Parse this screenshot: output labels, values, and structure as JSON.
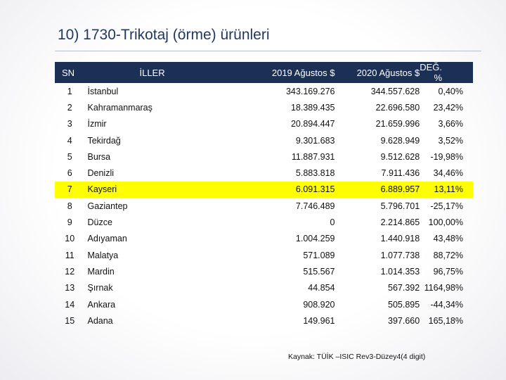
{
  "title": "10) 1730-Trikotaj (örme) ürünleri",
  "table": {
    "headers": [
      "SN",
      "İLLER",
      "2019 Ağustos $",
      "2020 Ağustos $",
      "DEĞ. %"
    ],
    "rows": [
      {
        "sn": "1",
        "il": "İstanbul",
        "v2019": "343.169.276",
        "v2020": "344.557.628",
        "deg": "0,40%",
        "highlight": false
      },
      {
        "sn": "2",
        "il": "Kahramanmaraş",
        "v2019": "18.389.435",
        "v2020": "22.696.580",
        "deg": "23,42%",
        "highlight": false
      },
      {
        "sn": "3",
        "il": "İzmir",
        "v2019": "20.894.447",
        "v2020": "21.659.996",
        "deg": "3,66%",
        "highlight": false
      },
      {
        "sn": "4",
        "il": "Tekirdağ",
        "v2019": "9.301.683",
        "v2020": "9.628.949",
        "deg": "3,52%",
        "highlight": false
      },
      {
        "sn": "5",
        "il": "Bursa",
        "v2019": "11.887.931",
        "v2020": "9.512.628",
        "deg": "-19,98%",
        "highlight": false
      },
      {
        "sn": "6",
        "il": "Denizli",
        "v2019": "5.883.818",
        "v2020": "7.911.436",
        "deg": "34,46%",
        "highlight": false
      },
      {
        "sn": "7",
        "il": "Kayseri",
        "v2019": "6.091.315",
        "v2020": "6.889.957",
        "deg": "13,11%",
        "highlight": true
      },
      {
        "sn": "8",
        "il": "Gaziantep",
        "v2019": "7.746.489",
        "v2020": "5.796.701",
        "deg": "-25,17%",
        "highlight": false
      },
      {
        "sn": "9",
        "il": "Düzce",
        "v2019": "0",
        "v2020": "2.214.865",
        "deg": "100,00%",
        "highlight": false
      },
      {
        "sn": "10",
        "il": "Adıyaman",
        "v2019": "1.004.259",
        "v2020": "1.440.918",
        "deg": "43,48%",
        "highlight": false
      },
      {
        "sn": "11",
        "il": "Malatya",
        "v2019": "571.089",
        "v2020": "1.077.738",
        "deg": "88,72%",
        "highlight": false
      },
      {
        "sn": "12",
        "il": "Mardin",
        "v2019": "515.567",
        "v2020": "1.014.353",
        "deg": "96,75%",
        "highlight": false
      },
      {
        "sn": "13",
        "il": "Şırnak",
        "v2019": "44.854",
        "v2020": "567.392",
        "deg": "1164,98%",
        "highlight": false
      },
      {
        "sn": "14",
        "il": "Ankara",
        "v2019": "908.920",
        "v2020": "505.895",
        "deg": "-44,34%",
        "highlight": false
      },
      {
        "sn": "15",
        "il": "Adana",
        "v2019": "149.961",
        "v2020": "397.660",
        "deg": "165,18%",
        "highlight": false
      }
    ]
  },
  "footnote": "Kaynak: TÜİK –ISIC Rev3-Düzey4(4 digit)",
  "colors": {
    "header_bg": "#1c2f55",
    "highlight": "#ffff00",
    "title": "#1f3864"
  }
}
